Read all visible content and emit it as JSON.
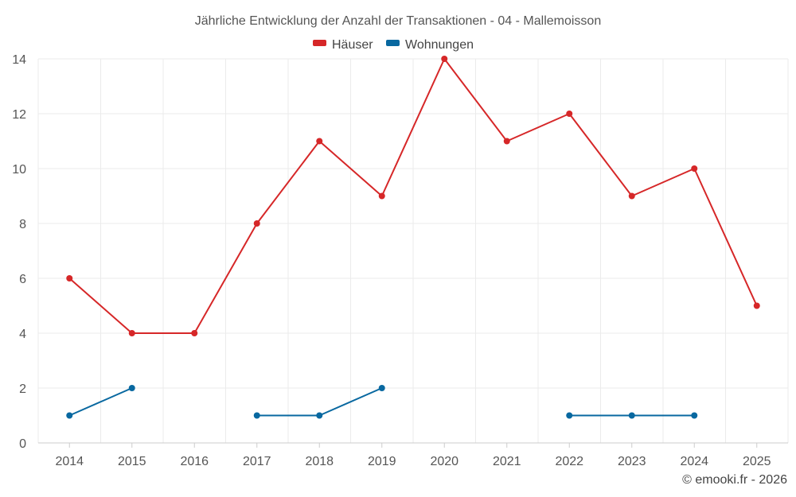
{
  "chart_data": {
    "type": "line",
    "title": "Jährliche Entwicklung der Anzahl der Transaktionen - 04 - Mallemoisson",
    "categories": [
      "2014",
      "2015",
      "2016",
      "2017",
      "2018",
      "2019",
      "2020",
      "2021",
      "2022",
      "2023",
      "2024",
      "2025"
    ],
    "ylim": [
      0,
      14
    ],
    "yticks": [
      "0",
      "2",
      "4",
      "6",
      "8",
      "10",
      "12",
      "14"
    ],
    "grid": true,
    "legend_position": "top-center",
    "series": [
      {
        "name": "Häuser",
        "color": "#d62728",
        "values": [
          6,
          4,
          4,
          8,
          11,
          9,
          14,
          11,
          12,
          9,
          10,
          5
        ]
      },
      {
        "name": "Wohnungen",
        "color": "#0868a0",
        "values": [
          1,
          2,
          null,
          1,
          1,
          2,
          null,
          null,
          1,
          1,
          1,
          null
        ]
      }
    ]
  },
  "credit": "© emooki.fr - 2026"
}
